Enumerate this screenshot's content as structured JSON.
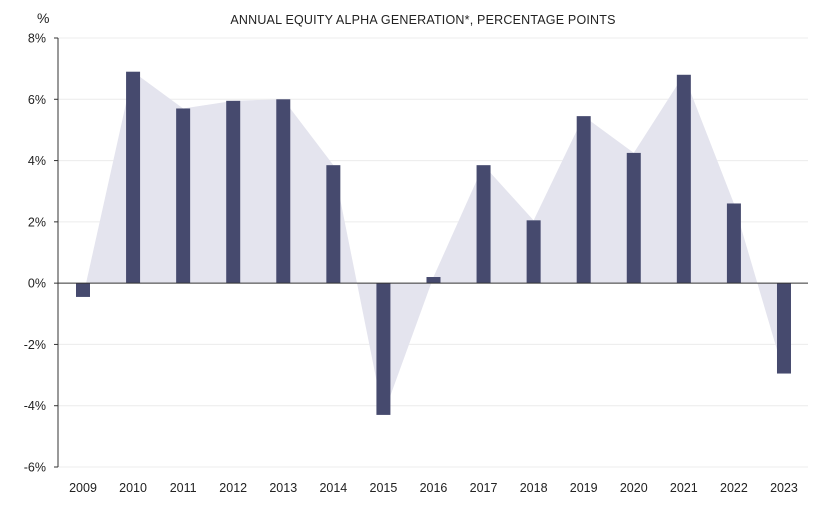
{
  "chart_data": {
    "type": "bar",
    "title": "ANNUAL EQUITY ALPHA GENERATION*, PERCENTAGE POINTS",
    "ylabel": "%",
    "xlabel": "",
    "categories": [
      "2009",
      "2010",
      "2011",
      "2012",
      "2013",
      "2014",
      "2015",
      "2016",
      "2017",
      "2018",
      "2019",
      "2020",
      "2021",
      "2022",
      "2023"
    ],
    "values": [
      -0.45,
      6.9,
      5.7,
      5.95,
      6.0,
      3.85,
      -4.3,
      0.2,
      3.85,
      2.05,
      5.45,
      4.25,
      6.8,
      2.6,
      -2.95
    ],
    "ylim": [
      -6,
      8
    ],
    "yticks": [
      8,
      6,
      4,
      2,
      0,
      -2,
      -4,
      -6
    ],
    "ytick_labels": [
      "8%",
      "6%",
      "4%",
      "2%",
      "0%",
      "-2%",
      "-4%",
      "-6%"
    ],
    "grid": true,
    "colors": {
      "bar": "#464a6e",
      "area": "#e4e4ee",
      "grid": "#ececec",
      "axis": "#333333"
    }
  }
}
